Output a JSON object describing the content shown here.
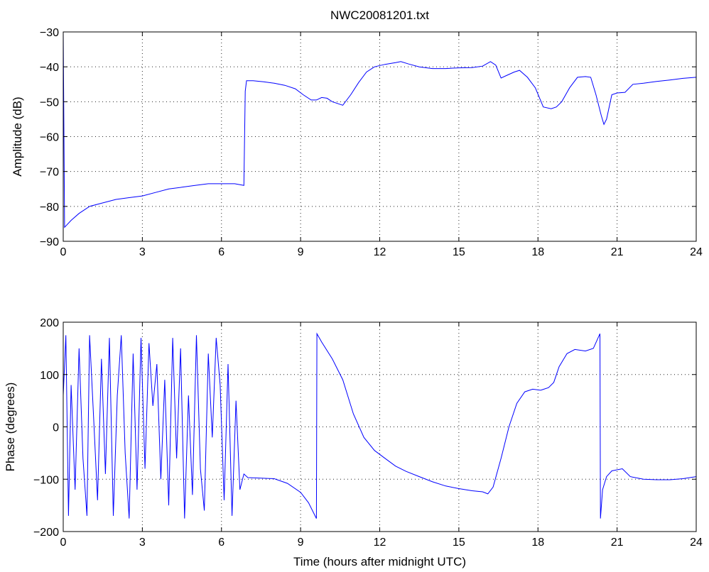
{
  "chart_data": [
    {
      "type": "line",
      "title": "NWC20081201.txt",
      "xlabel": "",
      "ylabel": "Amplitude (dB)",
      "xlim": [
        0,
        24
      ],
      "ylim": [
        -90,
        -30
      ],
      "xticks": [
        0,
        3,
        6,
        9,
        12,
        15,
        18,
        21,
        24
      ],
      "yticks": [
        -90,
        -80,
        -70,
        -60,
        -50,
        -40,
        -30
      ],
      "xtick_labels": [
        "0",
        "3",
        "6",
        "9",
        "12",
        "15",
        "18",
        "21",
        "24"
      ],
      "ytick_labels": [
        "−90",
        "−80",
        "−70",
        "−60",
        "−50",
        "−40",
        "−30"
      ],
      "grid": true,
      "color": "#0000ff",
      "series": [
        {
          "x": [
            0,
            0.05,
            0.3,
            0.6,
            1.0,
            1.5,
            2.0,
            2.5,
            3.0,
            3.5,
            4.0,
            4.5,
            5.0,
            5.5,
            6.0,
            6.5,
            6.85,
            6.9,
            6.95,
            7.2,
            7.6,
            8.0,
            8.4,
            8.8,
            9.1,
            9.4,
            9.6,
            9.8,
            10.0,
            10.2,
            10.4,
            10.6,
            10.9,
            11.2,
            11.5,
            11.8,
            12.2,
            12.6,
            12.8,
            13.1,
            13.5,
            14.0,
            14.5,
            15.0,
            15.5,
            15.9,
            16.2,
            16.4,
            16.6,
            16.8,
            17.1,
            17.3,
            17.6,
            17.9,
            18.2,
            18.5,
            18.7,
            18.9,
            19.2,
            19.5,
            19.8,
            20.0,
            20.2,
            20.4,
            20.5,
            20.6,
            20.8,
            21.0,
            21.3,
            21.6,
            22.0,
            22.5,
            23.0,
            23.5,
            24.0
          ],
          "y": [
            -30,
            -86,
            -84,
            -82,
            -80,
            -79,
            -78,
            -77.5,
            -77,
            -76,
            -75,
            -74.5,
            -74,
            -73.5,
            -73.5,
            -73.5,
            -74,
            -47,
            -44,
            -44,
            -44.3,
            -44.7,
            -45.3,
            -46.3,
            -48,
            -49.5,
            -49.5,
            -48.8,
            -49,
            -50,
            -50.5,
            -51,
            -48,
            -44.5,
            -41.5,
            -40,
            -39.3,
            -38.8,
            -38.5,
            -39.2,
            -40,
            -40.5,
            -40.5,
            -40.3,
            -40.2,
            -39.8,
            -38.5,
            -39.5,
            -43.2,
            -42.5,
            -41.5,
            -41,
            -43,
            -46,
            -51.5,
            -52,
            -51.5,
            -50,
            -46,
            -43,
            -42.8,
            -43,
            -48,
            -54,
            -56.5,
            -55,
            -48,
            -47.5,
            -47.3,
            -45,
            -44.7,
            -44.2,
            -43.8,
            -43.3,
            -43
          ]
        }
      ]
    },
    {
      "type": "line",
      "title": "",
      "xlabel": "Time (hours after midnight UTC)",
      "ylabel": "Phase (degrees)",
      "xlim": [
        0,
        24
      ],
      "ylim": [
        -200,
        200
      ],
      "xticks": [
        0,
        3,
        6,
        9,
        12,
        15,
        18,
        21,
        24
      ],
      "yticks": [
        -200,
        -100,
        0,
        100,
        200
      ],
      "xtick_labels": [
        "0",
        "3",
        "6",
        "9",
        "12",
        "15",
        "18",
        "21",
        "24"
      ],
      "ytick_labels": [
        "−200",
        "−100",
        "0",
        "100",
        "200"
      ],
      "grid": true,
      "color": "#0000ff",
      "series": [
        {
          "x": [
            0,
            0.1,
            0.2,
            0.3,
            0.45,
            0.6,
            0.75,
            0.9,
            1.0,
            1.15,
            1.3,
            1.45,
            1.6,
            1.75,
            1.9,
            2.05,
            2.2,
            2.35,
            2.5,
            2.65,
            2.8,
            2.95,
            3.1,
            3.25,
            3.4,
            3.55,
            3.7,
            3.85,
            4.0,
            4.15,
            4.3,
            4.45,
            4.6,
            4.75,
            4.9,
            5.05,
            5.2,
            5.35,
            5.5,
            5.65,
            5.8,
            5.95,
            6.1,
            6.25,
            6.4,
            6.55,
            6.7,
            6.85,
            7.0,
            7.5,
            8.0,
            8.5,
            9.0,
            9.3,
            9.6,
            9.62,
            9.8,
            10.2,
            10.6,
            11.0,
            11.4,
            11.8,
            12.2,
            12.6,
            13.0,
            13.5,
            14.0,
            14.5,
            15.0,
            15.5,
            15.9,
            16.1,
            16.3,
            16.6,
            16.9,
            17.2,
            17.5,
            17.8,
            18.1,
            18.4,
            18.6,
            18.8,
            19.1,
            19.4,
            19.8,
            20.1,
            20.35,
            20.37,
            20.45,
            20.6,
            20.8,
            21.0,
            21.2,
            21.5,
            22.0,
            22.5,
            23.0,
            23.5,
            24.0
          ],
          "y": [
            60,
            175,
            -170,
            80,
            -120,
            150,
            -60,
            -170,
            175,
            20,
            -140,
            130,
            -90,
            170,
            -170,
            60,
            175,
            -50,
            -175,
            140,
            -120,
            170,
            -80,
            160,
            40,
            120,
            -100,
            90,
            -150,
            170,
            -60,
            150,
            -175,
            60,
            -130,
            175,
            -80,
            -160,
            140,
            -20,
            170,
            80,
            -140,
            120,
            -170,
            50,
            -120,
            -90,
            -97,
            -98,
            -99,
            -108,
            -125,
            -145,
            -175,
            178,
            162,
            130,
            90,
            25,
            -20,
            -45,
            -60,
            -75,
            -85,
            -95,
            -105,
            -113,
            -118,
            -122,
            -124,
            -128,
            -115,
            -60,
            0,
            45,
            67,
            72,
            70,
            75,
            85,
            115,
            140,
            148,
            145,
            150,
            178,
            -175,
            -120,
            -95,
            -84,
            -82,
            -80,
            -95,
            -100,
            -101,
            -101,
            -99,
            -95
          ]
        }
      ]
    }
  ]
}
